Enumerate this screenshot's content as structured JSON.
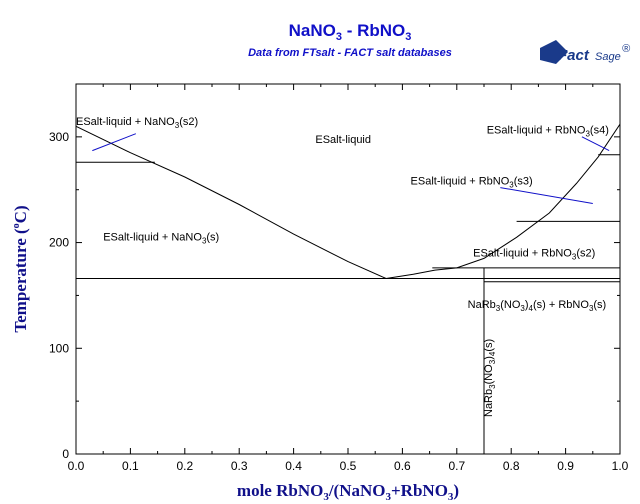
{
  "chart_data": {
    "type": "line",
    "title": "NaNO3 - RbNO3",
    "title_main_a": "NaNO",
    "title_sub_a": "3",
    "title_main_b": " - RbNO",
    "title_sub_b": "3",
    "subtitle": "Data from FTsalt - FACT salt databases",
    "logo": {
      "main": "Fact",
      "secondary": "Sage",
      "mark": "®"
    },
    "xlabel": "mole RbNO3/(NaNO3+RbNO3)",
    "xlabel_parts": [
      "mole RbNO",
      "3",
      "/(NaNO",
      "3",
      "+RbNO",
      "3",
      ")"
    ],
    "ylabel": "Temperature (°C)",
    "ylabel_parts": {
      "main": "Temperature (",
      "deg": "o",
      "unit": "C)"
    },
    "xlim": [
      0,
      1
    ],
    "ylim": [
      0,
      350
    ],
    "x_ticks": [
      "0.0",
      "0.1",
      "0.2",
      "0.3",
      "0.4",
      "0.5",
      "0.6",
      "0.7",
      "0.8",
      "0.9",
      "1.0"
    ],
    "y_ticks": [
      "0",
      "100",
      "200",
      "300"
    ],
    "y_tick_values": [
      0,
      100,
      200,
      300
    ],
    "line_color": "#000000",
    "annotation_color": "#1010c8",
    "series": [
      {
        "id": "liquidus-nano3",
        "points": [
          [
            0.0,
            310
          ],
          [
            0.1,
            285
          ],
          [
            0.2,
            262
          ],
          [
            0.3,
            236
          ],
          [
            0.4,
            208
          ],
          [
            0.5,
            182
          ],
          [
            0.57,
            166
          ]
        ]
      },
      {
        "id": "liquidus-rbno3-low",
        "points": [
          [
            0.57,
            166
          ],
          [
            0.62,
            170
          ],
          [
            0.66,
            174
          ],
          [
            0.7,
            176
          ],
          [
            0.75,
            185
          ]
        ]
      },
      {
        "id": "liquidus-rbno3-high",
        "points": [
          [
            0.75,
            185
          ],
          [
            0.81,
            205
          ],
          [
            0.87,
            228
          ],
          [
            0.92,
            256
          ],
          [
            0.96,
            281
          ],
          [
            1.0,
            312
          ]
        ]
      },
      {
        "id": "nano3-transition",
        "points": [
          [
            0.0,
            276
          ],
          [
            0.145,
            276
          ]
        ]
      },
      {
        "id": "eutectic",
        "points": [
          [
            0.0,
            166
          ],
          [
            1.0,
            166
          ]
        ]
      },
      {
        "id": "peritectic",
        "points": [
          [
            0.655,
            176
          ],
          [
            1.0,
            176
          ]
        ]
      },
      {
        "id": "rbno3-s2-s3",
        "points": [
          [
            0.81,
            220
          ],
          [
            1.0,
            220
          ]
        ]
      },
      {
        "id": "rbno3-s3-s4",
        "points": [
          [
            0.96,
            283
          ],
          [
            1.0,
            283
          ]
        ]
      },
      {
        "id": "compound-line",
        "points": [
          [
            0.75,
            0
          ],
          [
            0.75,
            176
          ]
        ]
      },
      {
        "id": "below-peritectic",
        "points": [
          [
            0.75,
            163
          ],
          [
            1.0,
            163
          ]
        ]
      }
    ],
    "annotations": [
      {
        "id": "region-liquid",
        "text": "ESalt-liquid",
        "color": "black",
        "x": 0.44,
        "y": 294
      },
      {
        "id": "region-liq-nano3-s2",
        "text": "ESalt-liquid + NaNO",
        "sub": "3",
        "tail": "(s2)",
        "color": "blue",
        "x": 0.0,
        "y": 311,
        "pointer": [
          [
            0.03,
            287
          ],
          [
            0.11,
            303
          ]
        ]
      },
      {
        "id": "region-liq-nano3",
        "text": "ESalt-liquid + NaNO",
        "sub": "3",
        "tail": "(s)",
        "color": "black",
        "x": 0.05,
        "y": 202
      },
      {
        "id": "region-liq-rbno3-s4",
        "text": "ESalt-liquid + RbNO",
        "sub": "3",
        "tail": "(s4)",
        "color": "blue",
        "x": 0.755,
        "y": 303,
        "pointer": [
          [
            0.98,
            287
          ],
          [
            0.93,
            300
          ]
        ]
      },
      {
        "id": "region-liq-rbno3-s3",
        "text": "ESalt-liquid + RbNO",
        "sub": "3",
        "tail": "(s3)",
        "color": "blue",
        "x": 0.615,
        "y": 255,
        "pointer": [
          [
            0.95,
            237
          ],
          [
            0.78,
            252
          ]
        ]
      },
      {
        "id": "region-liq-rbno3-s2",
        "text": "ESalt-liquid + RbNO",
        "sub": "3",
        "tail": "(s2)",
        "color": "black",
        "x": 0.73,
        "y": 187
      },
      {
        "id": "region-compound-rbno3",
        "text": "NaRb",
        "sub": "3",
        "tail": "(NO",
        "sub2": "3",
        "tail2": ")",
        "sub3": "4",
        "tail3": "(s) + RbNO",
        "sub4": "3",
        "tail4": "(s)",
        "color": "black",
        "x": 0.72,
        "y": 138
      },
      {
        "id": "region-compound",
        "text": "NaRb",
        "sub": "3",
        "tail": "(NO",
        "sub2": "3",
        "tail2": ")",
        "sub3": "4",
        "tail3": "(s)",
        "color": "black",
        "x": 0.765,
        "y": 35,
        "rotate": true
      }
    ]
  }
}
